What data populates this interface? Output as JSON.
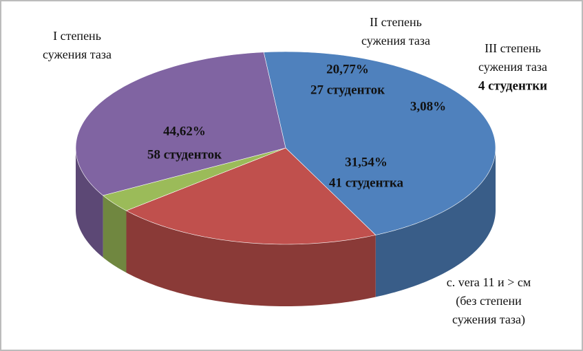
{
  "chart_data": {
    "type": "pie3d",
    "categories": [
      [
        "I степень",
        "сужения таза"
      ],
      [
        "II степень",
        "сужения таза"
      ],
      [
        "III  степень",
        "сужения таза"
      ],
      [
        "c. vera 11 и > см",
        "(без степени",
        "сужения таза)"
      ]
    ],
    "values": [
      44.62,
      20.77,
      3.08,
      31.54
    ],
    "value_labels": [
      "44,62%",
      "20,77%",
      "3,08%",
      "31,54%"
    ],
    "counts": [
      58,
      27,
      4,
      41
    ],
    "count_labels": [
      "58 студенток",
      "27 студенток",
      "4 студентки",
      "41 студентка"
    ],
    "colors": [
      "#4f81bd",
      "#c0504d",
      "#9bbb59",
      "#8064a2"
    ]
  }
}
